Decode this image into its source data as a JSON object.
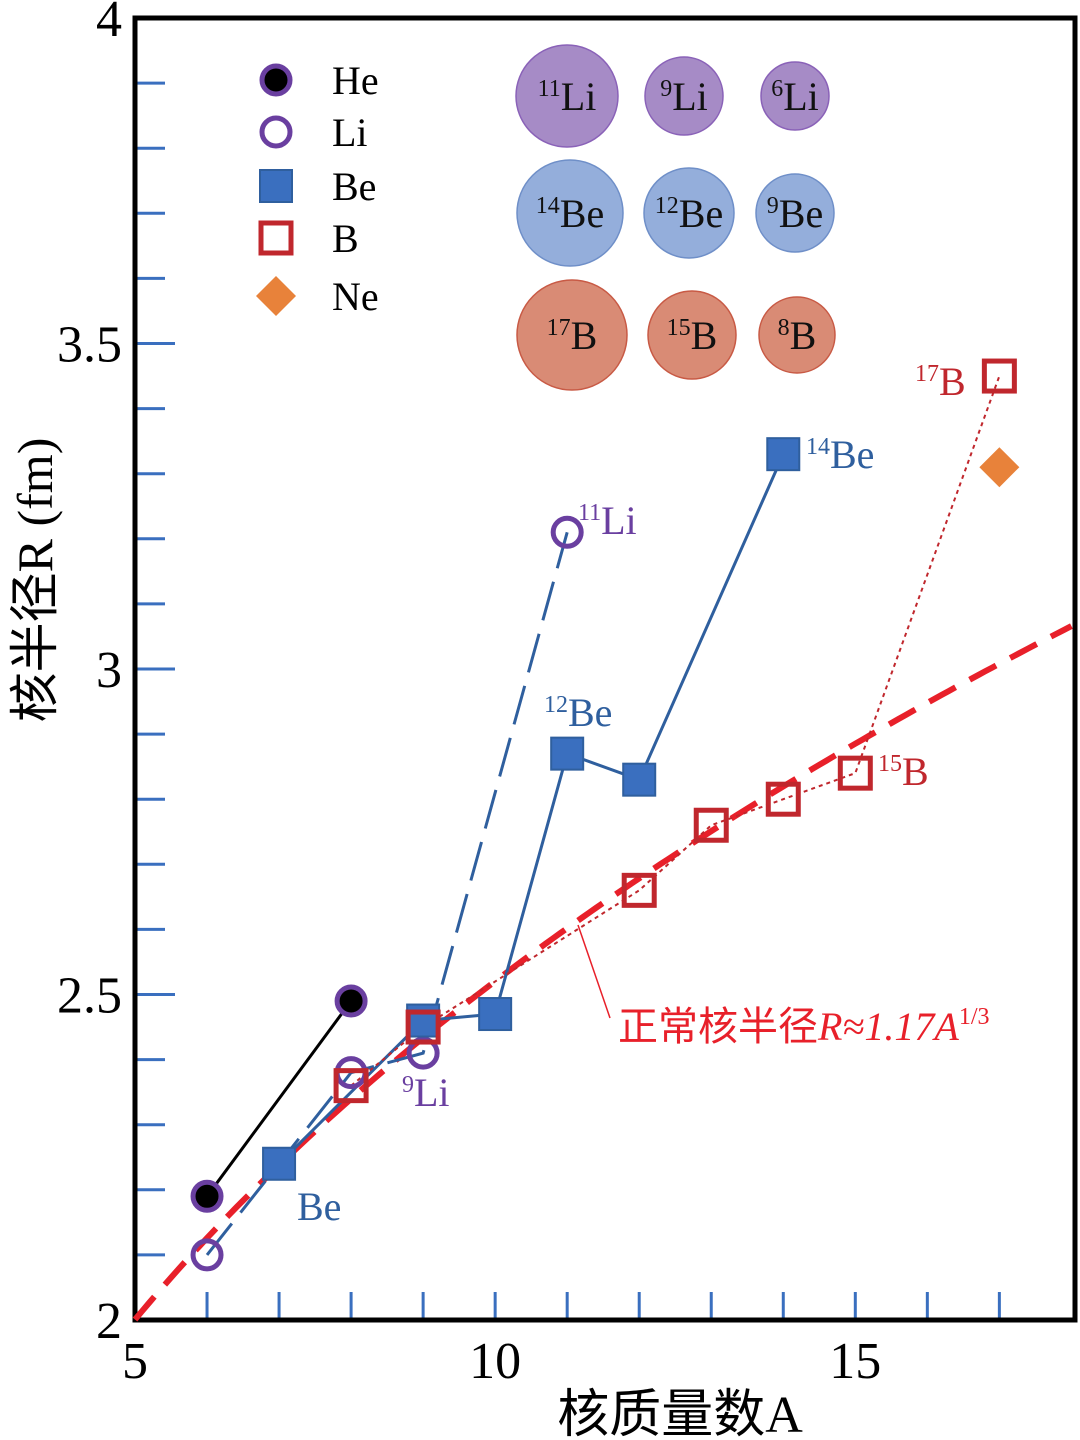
{
  "chart_data": {
    "type": "scatter",
    "xlabel": "核质量数A",
    "ylabel": "核半径R (fm)",
    "xlim": [
      5,
      18.05
    ],
    "ylim": [
      2,
      4
    ],
    "xticks": [
      5,
      10,
      15
    ],
    "xtick_labels": [
      "5",
      "10",
      "15"
    ],
    "yticks": [
      2,
      2.5,
      3,
      3.5,
      4
    ],
    "ytick_labels": [
      "2",
      "2.5",
      "3",
      "3.5",
      "4"
    ],
    "grid": false,
    "legend_position": "top-left",
    "series": [
      {
        "name": "He",
        "marker": "filled-circle",
        "line": "solid",
        "color": "#000000",
        "edge": "#6a3fa0",
        "x": [
          6,
          8
        ],
        "y": [
          2.19,
          2.49
        ]
      },
      {
        "name": "Li",
        "marker": "open-circle",
        "line": "dashed",
        "color": "#6a3fa0",
        "linecolor": "#2f5f9e",
        "x": [
          6,
          8,
          9,
          11
        ],
        "y": [
          2.1,
          2.38,
          2.41,
          3.21
        ]
      },
      {
        "name": "Be",
        "marker": "filled-square",
        "line": "solid",
        "color": "#3a6fbf",
        "linecolor": "#2f5f9e",
        "x": [
          7,
          9,
          10,
          11,
          12,
          14
        ],
        "y": [
          2.24,
          2.46,
          2.47,
          2.87,
          2.83,
          3.33
        ]
      },
      {
        "name": "B",
        "marker": "open-square",
        "line": "dotted",
        "color": "#c0272d",
        "linecolor": "#c0272d",
        "x": [
          8,
          9,
          12,
          13,
          14,
          15,
          17
        ],
        "y": [
          2.36,
          2.45,
          2.66,
          2.76,
          2.8,
          2.84,
          3.45
        ]
      },
      {
        "name": "Ne",
        "marker": "diamond",
        "line": "none",
        "color": "#e8823a",
        "x": [
          17
        ],
        "y": [
          3.31
        ]
      }
    ],
    "fit_curve": {
      "label_main": "正常核半径",
      "label_formula": "R≈1.17A",
      "label_exp": "1/3",
      "coefficient": 1.17,
      "exponent": 0.3333,
      "color": "#e8202a"
    },
    "annotations": [
      {
        "mass": "11",
        "symbol": "Li",
        "color": "#6a3fa0"
      },
      {
        "mass": "14",
        "symbol": "Be",
        "color": "#2f5f9e"
      },
      {
        "mass": "17",
        "symbol": "B",
        "color": "#c0272d"
      },
      {
        "mass": "12",
        "symbol": "Be",
        "color": "#2f5f9e"
      },
      {
        "mass": "15",
        "symbol": "B",
        "color": "#c0272d"
      },
      {
        "mass": "9",
        "symbol": "Li",
        "color": "#6a3fa0"
      },
      {
        "mass": "",
        "symbol": "Be",
        "color": "#2f5f9e"
      }
    ],
    "nucleus_illustration": [
      {
        "mass": "11",
        "symbol": "Li",
        "color": "#a68bc6"
      },
      {
        "mass": "9",
        "symbol": "Li",
        "color": "#a68bc6"
      },
      {
        "mass": "6",
        "symbol": "Li",
        "color": "#a68bc6"
      },
      {
        "mass": "14",
        "symbol": "Be",
        "color": "#94aedb"
      },
      {
        "mass": "12",
        "symbol": "Be",
        "color": "#94aedb"
      },
      {
        "mass": "9",
        "symbol": "Be",
        "color": "#94aedb"
      },
      {
        "mass": "17",
        "symbol": "B",
        "color": "#d98b75"
      },
      {
        "mass": "15",
        "symbol": "B",
        "color": "#d98b75"
      },
      {
        "mass": "8",
        "symbol": "B",
        "color": "#d98b75"
      }
    ]
  }
}
